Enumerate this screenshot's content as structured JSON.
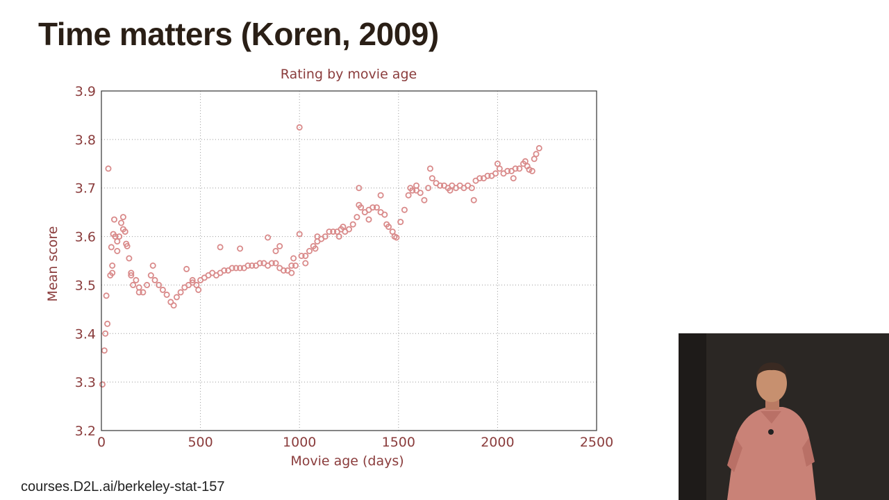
{
  "slide": {
    "title": "Time matters (Koren, 2009)",
    "footer_url": "courses.D2L.ai/berkeley-stat-157"
  },
  "colors": {
    "marker": "#d98a8a",
    "axis_text": "#8a3c3c",
    "title_text": "#2a1f16"
  },
  "chart_data": {
    "type": "scatter",
    "title": "Rating by movie age",
    "xlabel": "Movie age (days)",
    "ylabel": "Mean score",
    "xlim": [
      0,
      2500
    ],
    "ylim": [
      3.2,
      3.9
    ],
    "xticks": [
      "0",
      "500",
      "1000",
      "1500",
      "2000",
      "2500"
    ],
    "yticks": [
      "3.2",
      "3.3",
      "3.4",
      "3.5",
      "3.6",
      "3.7",
      "3.8",
      "3.9"
    ],
    "grid": true,
    "series": [
      {
        "marker": "circle-open",
        "points": [
          [
            5,
            3.295
          ],
          [
            15,
            3.365
          ],
          [
            20,
            3.4
          ],
          [
            25,
            3.478
          ],
          [
            35,
            3.74
          ],
          [
            45,
            3.52
          ],
          [
            50,
            3.578
          ],
          [
            55,
            3.525
          ],
          [
            60,
            3.605
          ],
          [
            65,
            3.635
          ],
          [
            70,
            3.6
          ],
          [
            80,
            3.59
          ],
          [
            90,
            3.6
          ],
          [
            100,
            3.628
          ],
          [
            110,
            3.64
          ],
          [
            120,
            3.61
          ],
          [
            125,
            3.585
          ],
          [
            130,
            3.58
          ],
          [
            140,
            3.555
          ],
          [
            150,
            3.525
          ],
          [
            160,
            3.5
          ],
          [
            175,
            3.51
          ],
          [
            190,
            3.495
          ],
          [
            210,
            3.485
          ],
          [
            230,
            3.5
          ],
          [
            250,
            3.52
          ],
          [
            270,
            3.51
          ],
          [
            290,
            3.5
          ],
          [
            310,
            3.49
          ],
          [
            330,
            3.48
          ],
          [
            350,
            3.465
          ],
          [
            365,
            3.458
          ],
          [
            380,
            3.475
          ],
          [
            400,
            3.485
          ],
          [
            420,
            3.495
          ],
          [
            440,
            3.5
          ],
          [
            460,
            3.505
          ],
          [
            480,
            3.5
          ],
          [
            500,
            3.51
          ],
          [
            520,
            3.515
          ],
          [
            540,
            3.52
          ],
          [
            560,
            3.525
          ],
          [
            580,
            3.52
          ],
          [
            600,
            3.525
          ],
          [
            620,
            3.53
          ],
          [
            640,
            3.53
          ],
          [
            660,
            3.535
          ],
          [
            680,
            3.535
          ],
          [
            700,
            3.535
          ],
          [
            720,
            3.535
          ],
          [
            740,
            3.54
          ],
          [
            760,
            3.54
          ],
          [
            780,
            3.54
          ],
          [
            800,
            3.545
          ],
          [
            820,
            3.545
          ],
          [
            840,
            3.54
          ],
          [
            860,
            3.545
          ],
          [
            880,
            3.545
          ],
          [
            900,
            3.535
          ],
          [
            920,
            3.53
          ],
          [
            940,
            3.53
          ],
          [
            960,
            3.525
          ],
          [
            980,
            3.54
          ],
          [
            1000,
            3.605
          ],
          [
            1010,
            3.56
          ],
          [
            1030,
            3.56
          ],
          [
            1050,
            3.57
          ],
          [
            1070,
            3.58
          ],
          [
            1090,
            3.59
          ],
          [
            1110,
            3.595
          ],
          [
            1130,
            3.6
          ],
          [
            1150,
            3.61
          ],
          [
            1170,
            3.61
          ],
          [
            1190,
            3.61
          ],
          [
            1210,
            3.615
          ],
          [
            1230,
            3.61
          ],
          [
            1250,
            3.615
          ],
          [
            1270,
            3.625
          ],
          [
            1290,
            3.64
          ],
          [
            1300,
            3.665
          ],
          [
            1310,
            3.66
          ],
          [
            1330,
            3.65
          ],
          [
            1350,
            3.655
          ],
          [
            1370,
            3.66
          ],
          [
            1390,
            3.66
          ],
          [
            1410,
            3.65
          ],
          [
            1430,
            3.645
          ],
          [
            1450,
            3.62
          ],
          [
            1470,
            3.61
          ],
          [
            1480,
            3.6
          ],
          [
            1490,
            3.598
          ],
          [
            1510,
            3.63
          ],
          [
            1530,
            3.655
          ],
          [
            1550,
            3.685
          ],
          [
            1570,
            3.695
          ],
          [
            1590,
            3.695
          ],
          [
            1610,
            3.69
          ],
          [
            1630,
            3.675
          ],
          [
            1650,
            3.7
          ],
          [
            1670,
            3.72
          ],
          [
            1690,
            3.71
          ],
          [
            1710,
            3.705
          ],
          [
            1730,
            3.705
          ],
          [
            1750,
            3.7
          ],
          [
            1770,
            3.705
          ],
          [
            1790,
            3.7
          ],
          [
            1810,
            3.705
          ],
          [
            1830,
            3.7
          ],
          [
            1850,
            3.705
          ],
          [
            1870,
            3.7
          ],
          [
            1890,
            3.715
          ],
          [
            1910,
            3.72
          ],
          [
            1930,
            3.72
          ],
          [
            1950,
            3.725
          ],
          [
            1970,
            3.725
          ],
          [
            1990,
            3.73
          ],
          [
            2010,
            3.74
          ],
          [
            2030,
            3.73
          ],
          [
            2050,
            3.735
          ],
          [
            2070,
            3.735
          ],
          [
            2090,
            3.74
          ],
          [
            2110,
            3.74
          ],
          [
            2130,
            3.75
          ],
          [
            2140,
            3.755
          ],
          [
            2150,
            3.745
          ],
          [
            2160,
            3.738
          ],
          [
            2175,
            3.735
          ],
          [
            2185,
            3.76
          ],
          [
            2195,
            3.77
          ],
          [
            2210,
            3.782
          ],
          [
            840,
            3.598
          ],
          [
            600,
            3.578
          ],
          [
            700,
            3.575
          ],
          [
            430,
            3.533
          ],
          [
            1000,
            3.825
          ],
          [
            1590,
            3.705
          ],
          [
            1880,
            3.675
          ],
          [
            1440,
            3.625
          ],
          [
            1300,
            3.7
          ],
          [
            1410,
            3.685
          ],
          [
            1030,
            3.545
          ],
          [
            970,
            3.555
          ],
          [
            900,
            3.58
          ],
          [
            880,
            3.57
          ],
          [
            1220,
            3.62
          ],
          [
            1760,
            3.695
          ],
          [
            1090,
            3.6
          ],
          [
            490,
            3.49
          ],
          [
            460,
            3.51
          ],
          [
            80,
            3.57
          ],
          [
            190,
            3.485
          ],
          [
            260,
            3.54
          ],
          [
            1660,
            3.74
          ],
          [
            2000,
            3.75
          ],
          [
            2080,
            3.72
          ],
          [
            1560,
            3.7
          ],
          [
            1350,
            3.635
          ],
          [
            1200,
            3.6
          ],
          [
            1080,
            3.575
          ],
          [
            960,
            3.54
          ],
          [
            150,
            3.52
          ],
          [
            110,
            3.615
          ],
          [
            55,
            3.54
          ],
          [
            30,
            3.42
          ]
        ]
      }
    ]
  }
}
